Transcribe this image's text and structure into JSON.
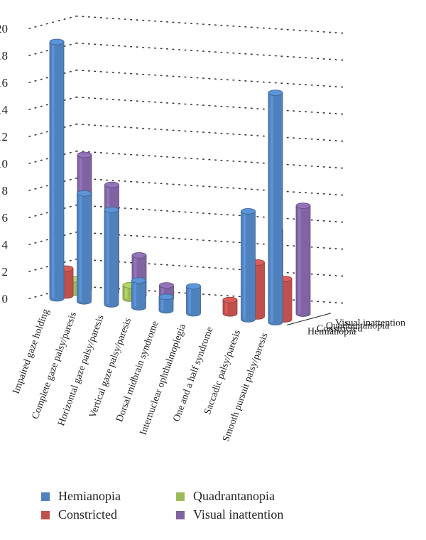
{
  "chart_data": {
    "type": "bar",
    "categories": [
      "Impaired gaze holding",
      "Complete gaze palsy/paresis",
      "Horizontal gaze palsy/paresis",
      "Vertical gaze palsy/paresis",
      "Dorsal midbrain syndrome",
      "Internuclear ophthalmoplegia",
      "One and a half syndrome",
      "Saccadic palsy/paresis",
      "Smooth pursuit palsy/paresis"
    ],
    "series": [
      {
        "name": "Hemianopia",
        "color": "#4f81bd",
        "values": [
          19,
          8,
          7,
          2,
          1,
          2,
          0,
          8,
          17
        ]
      },
      {
        "name": "Constricted",
        "color": "#c0504d",
        "values": [
          2,
          0,
          0,
          0,
          0,
          0,
          1,
          4,
          3
        ]
      },
      {
        "name": "Quadrantanopia",
        "color": "#9bbb59",
        "values": [
          1,
          0,
          1,
          0,
          0,
          0,
          0,
          0,
          0
        ]
      },
      {
        "name": "Visual inattention",
        "color": "#8064a2",
        "values": [
          10,
          8,
          3,
          1,
          0,
          0,
          0,
          6,
          8
        ]
      }
    ],
    "y_ticks": [
      "0",
      "2",
      "4",
      "6",
      "8",
      "10",
      "12",
      "14",
      "16",
      "18",
      "20"
    ],
    "depth_labels": [
      "Hemianopia",
      "Constricted",
      "Quadrantanopia",
      "Visual inattention"
    ],
    "ylim": [
      0,
      20
    ],
    "grid": true,
    "legend_position": "bottom"
  }
}
